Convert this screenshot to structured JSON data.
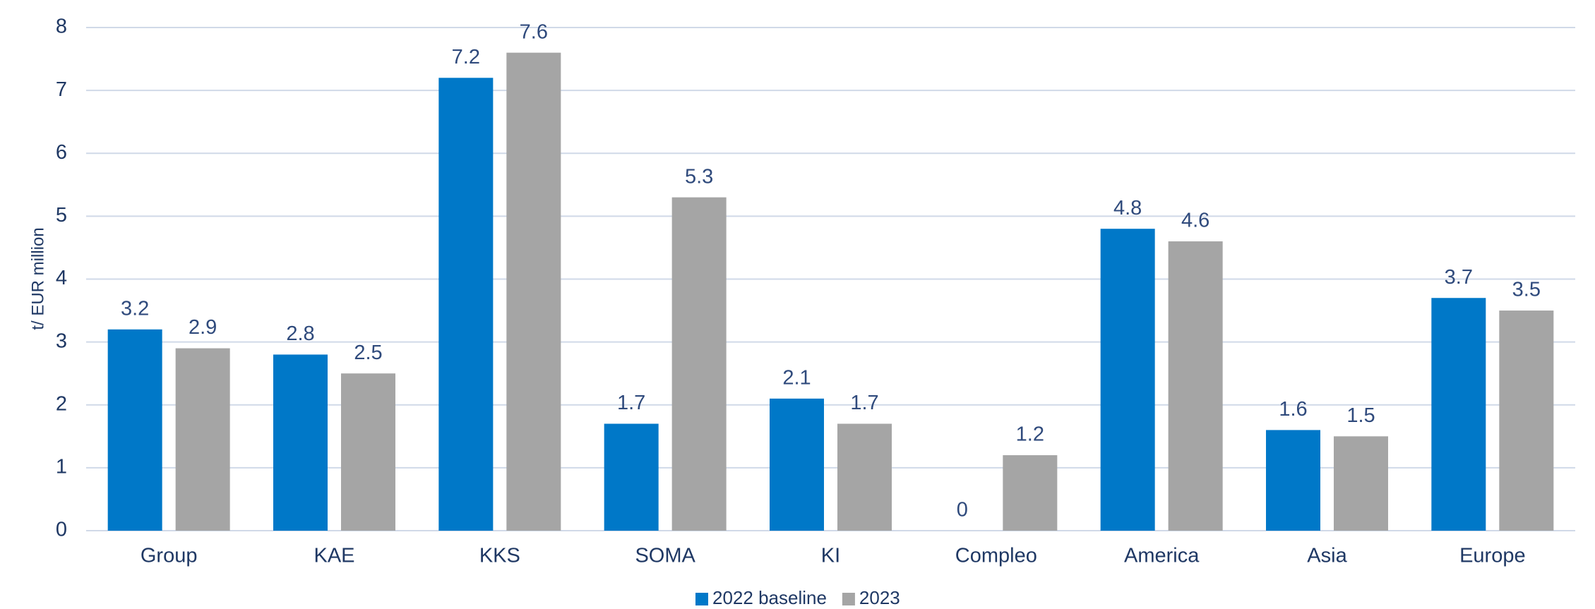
{
  "chart_data": {
    "type": "bar",
    "y_label": "t/ EUR million",
    "categories": [
      "Group",
      "KAE",
      "KKS",
      "SOMA",
      "KI",
      "Compleo",
      "America",
      "Asia",
      "Europe"
    ],
    "series": [
      {
        "name": "2022 baseline",
        "color": "#0078c8",
        "values": [
          3.2,
          2.8,
          7.2,
          1.7,
          2.1,
          0,
          4.8,
          1.6,
          3.7
        ]
      },
      {
        "name": "2023",
        "color": "#a5a5a5",
        "values": [
          2.9,
          2.5,
          7.6,
          5.3,
          1.7,
          1.2,
          4.6,
          1.5,
          3.5
        ]
      }
    ],
    "ylim": [
      0,
      8
    ],
    "yticks": [
      0,
      1,
      2,
      3,
      4,
      5,
      6,
      7,
      8
    ],
    "grid": true,
    "legend": "bottom"
  }
}
